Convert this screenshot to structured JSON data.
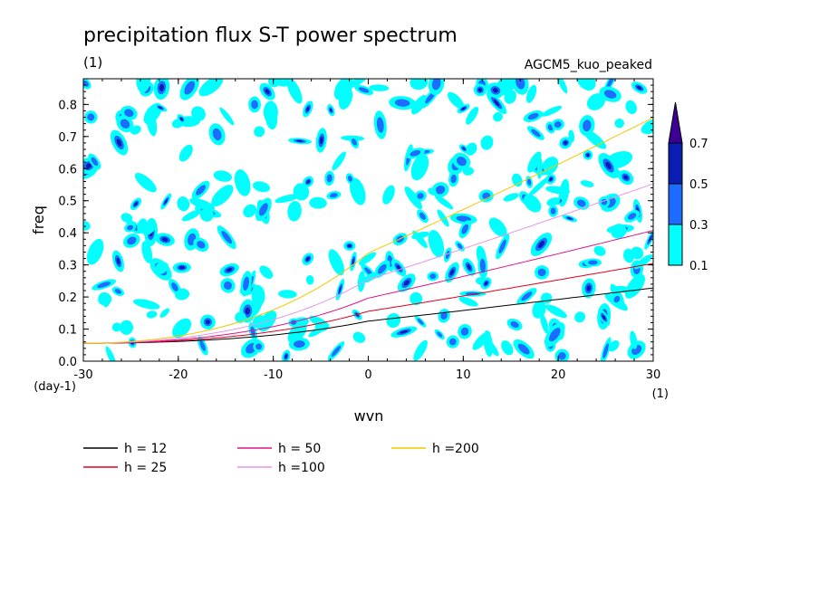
{
  "chart_data": {
    "type": "heatmap",
    "title": "precipitation flux S-T power spectrum",
    "units_note": "(1)",
    "model_label": "AGCM5_kuo_peaked",
    "xlabel": "wvn",
    "ylabel": "freq",
    "x_unit": "(1)",
    "y_unit": "(day-1)",
    "xlim": [
      -30,
      30
    ],
    "ylim": [
      0,
      0.88
    ],
    "xticks": [
      "-30",
      "-20",
      "-10",
      "0",
      "10",
      "20",
      "30"
    ],
    "yticks": [
      "0.0",
      "0.1",
      "0.2",
      "0.3",
      "0.4",
      "0.5",
      "0.6",
      "0.7",
      "0.8"
    ],
    "colorbar": {
      "levels": [
        "0.1",
        "0.3",
        "0.5",
        "0.7"
      ],
      "colors": [
        "#00ffff",
        "#1e6bff",
        "#0a1eb4",
        "#3c0096"
      ]
    },
    "dispersion_curves": [
      {
        "label": "h = 12",
        "h": 12,
        "color": "#000000"
      },
      {
        "label": "h = 25",
        "h": 25,
        "color": "#e0001e"
      },
      {
        "label": "h = 50",
        "h": 50,
        "color": "#e0148c"
      },
      {
        "label": "h =100",
        "h": 100,
        "color": "#e696e6"
      },
      {
        "label": "h =200",
        "h": 200,
        "color": "#f0c800"
      }
    ]
  }
}
